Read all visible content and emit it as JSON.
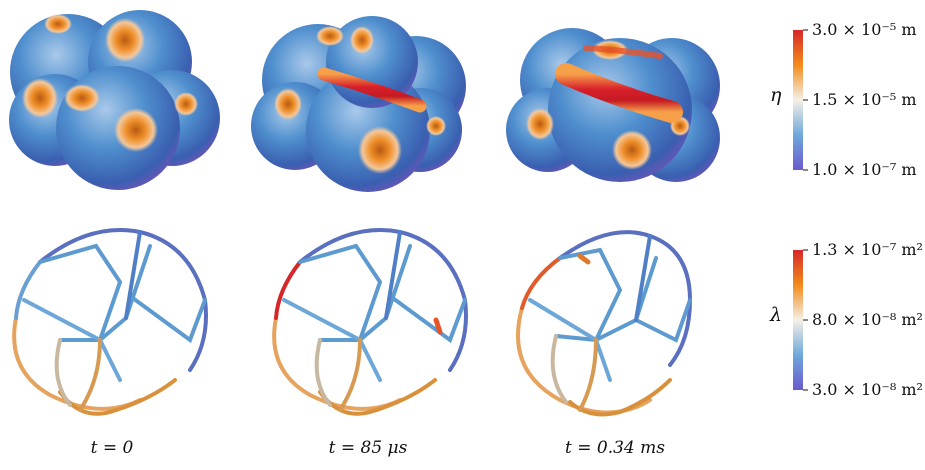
{
  "top_row": {
    "symbol": "η",
    "colorbar": {
      "max_label": "3.0 × 10⁻⁵ m",
      "mid_label": "1.5 × 10⁻⁵ m",
      "min_label": "1.0 × 10⁻⁷ m",
      "colors": [
        "#d62728",
        "#f28c1b",
        "#f5f0e6",
        "#6fa8dc",
        "#6a5acd"
      ]
    }
  },
  "bottom_row": {
    "symbol": "λ",
    "colorbar": {
      "max_label": "1.3 × 10⁻⁷ m²",
      "mid_label": "8.0 × 10⁻⁸ m²",
      "min_label": "3.0 × 10⁻⁸ m²",
      "colors": [
        "#d62728",
        "#f28c1b",
        "#f5f0e6",
        "#6fa8dc",
        "#6a5acd"
      ]
    }
  },
  "captions": [
    "t = 0",
    "t = 85 μs",
    "t = 0.34 ms"
  ]
}
